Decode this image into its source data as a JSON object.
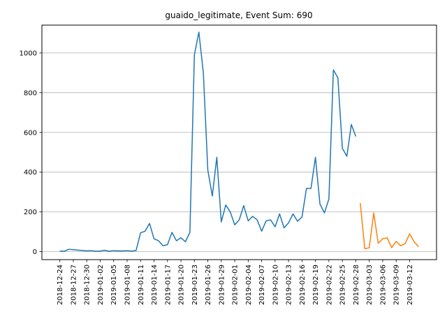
{
  "chart_data": {
    "type": "line",
    "title": "guaido_legitimate, Event Sum: 690",
    "xlabel": "",
    "ylabel": "",
    "ylim": [
      -40,
      1140
    ],
    "yticks": [
      0,
      200,
      400,
      600,
      800,
      1000
    ],
    "grid": "y-only",
    "legend": "none",
    "xticks": [
      "2018-12-24",
      "2018-12-27",
      "2018-12-30",
      "2019-01-02",
      "2019-01-05",
      "2019-01-08",
      "2019-01-11",
      "2019-01-14",
      "2019-01-17",
      "2019-01-20",
      "2019-01-23",
      "2019-01-26",
      "2019-01-29",
      "2019-02-01",
      "2019-02-04",
      "2019-02-07",
      "2019-02-10",
      "2019-02-13",
      "2019-02-16",
      "2019-02-19",
      "2019-02-22",
      "2019-02-25",
      "2019-02-28",
      "2019-03-03",
      "2019-03-06",
      "2019-03-09",
      "2019-03-12"
    ],
    "series": [
      {
        "color": "#1f77b4",
        "points": [
          [
            "2018-12-24",
            3
          ],
          [
            "2018-12-25",
            2
          ],
          [
            "2018-12-26",
            12
          ],
          [
            "2018-12-27",
            10
          ],
          [
            "2018-12-28",
            8
          ],
          [
            "2018-12-29",
            6
          ],
          [
            "2018-12-30",
            4
          ],
          [
            "2018-12-31",
            5
          ],
          [
            "2019-01-01",
            2
          ],
          [
            "2019-01-02",
            3
          ],
          [
            "2019-01-03",
            7
          ],
          [
            "2019-01-04",
            2
          ],
          [
            "2019-01-05",
            5
          ],
          [
            "2019-01-06",
            4
          ],
          [
            "2019-01-07",
            4
          ],
          [
            "2019-01-08",
            5
          ],
          [
            "2019-01-09",
            3
          ],
          [
            "2019-01-10",
            6
          ],
          [
            "2019-01-11",
            95
          ],
          [
            "2019-01-12",
            103
          ],
          [
            "2019-01-13",
            142
          ],
          [
            "2019-01-14",
            65
          ],
          [
            "2019-01-15",
            55
          ],
          [
            "2019-01-16",
            30
          ],
          [
            "2019-01-17",
            35
          ],
          [
            "2019-01-18",
            97
          ],
          [
            "2019-01-19",
            55
          ],
          [
            "2019-01-20",
            70
          ],
          [
            "2019-01-21",
            50
          ],
          [
            "2019-01-22",
            97
          ],
          [
            "2019-01-23",
            990
          ],
          [
            "2019-01-24",
            1105
          ],
          [
            "2019-01-25",
            900
          ],
          [
            "2019-01-26",
            410
          ],
          [
            "2019-01-27",
            280
          ],
          [
            "2019-01-28",
            475
          ],
          [
            "2019-01-29",
            150
          ],
          [
            "2019-01-30",
            235
          ],
          [
            "2019-01-31",
            200
          ],
          [
            "2019-02-01",
            135
          ],
          [
            "2019-02-02",
            160
          ],
          [
            "2019-02-03",
            232
          ],
          [
            "2019-02-04",
            155
          ],
          [
            "2019-02-05",
            178
          ],
          [
            "2019-02-06",
            160
          ],
          [
            "2019-02-07",
            103
          ],
          [
            "2019-02-08",
            155
          ],
          [
            "2019-02-09",
            160
          ],
          [
            "2019-02-10",
            125
          ],
          [
            "2019-02-11",
            190
          ],
          [
            "2019-02-12",
            120
          ],
          [
            "2019-02-13",
            145
          ],
          [
            "2019-02-14",
            190
          ],
          [
            "2019-02-15",
            153
          ],
          [
            "2019-02-16",
            175
          ],
          [
            "2019-02-17",
            318
          ],
          [
            "2019-02-18",
            318
          ],
          [
            "2019-02-19",
            475
          ],
          [
            "2019-02-20",
            240
          ],
          [
            "2019-02-21",
            195
          ],
          [
            "2019-02-22",
            265
          ],
          [
            "2019-02-23",
            915
          ],
          [
            "2019-02-24",
            875
          ],
          [
            "2019-02-25",
            520
          ],
          [
            "2019-02-26",
            480
          ],
          [
            "2019-02-27",
            640
          ],
          [
            "2019-02-28",
            580
          ]
        ]
      },
      {
        "color": "#ff7f0e",
        "points": [
          [
            "2019-03-01",
            245
          ],
          [
            "2019-03-02",
            15
          ],
          [
            "2019-03-03",
            20
          ],
          [
            "2019-03-04",
            195
          ],
          [
            "2019-03-05",
            42
          ],
          [
            "2019-03-06",
            65
          ],
          [
            "2019-03-07",
            70
          ],
          [
            "2019-03-08",
            20
          ],
          [
            "2019-03-09",
            52
          ],
          [
            "2019-03-10",
            30
          ],
          [
            "2019-03-11",
            40
          ],
          [
            "2019-03-12",
            90
          ],
          [
            "2019-03-13",
            50
          ],
          [
            "2019-03-14",
            25
          ]
        ]
      }
    ]
  }
}
